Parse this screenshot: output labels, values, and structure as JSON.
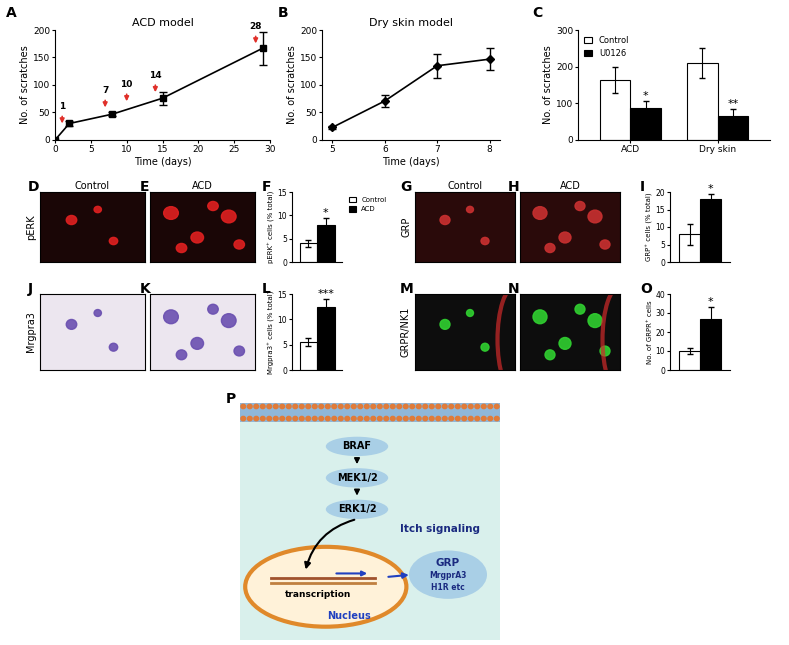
{
  "chart_data": [
    {
      "panel_label": "A",
      "type": "line",
      "title": "ACD model",
      "x_label": "Time (days)",
      "y_label": "No. of scratches",
      "x": [
        0,
        2,
        8,
        15,
        29
      ],
      "values": [
        0,
        30,
        47,
        76,
        167
      ],
      "errors": [
        0,
        4,
        4,
        12,
        30
      ],
      "color": "#000000",
      "marker": "square",
      "xlim": [
        0,
        30
      ],
      "xticks": [
        0,
        5,
        10,
        15,
        20,
        25,
        30
      ],
      "ylim": [
        0,
        200
      ],
      "yticks": [
        0,
        50,
        100,
        150,
        200
      ],
      "arrows": {
        "x": [
          1,
          7,
          10,
          14,
          28
        ],
        "color": "#e0302a"
      }
    },
    {
      "panel_label": "B",
      "type": "line",
      "title": "Dry skin model",
      "x_label": "Time (days)",
      "y_label": "No. of scratches",
      "x": [
        5,
        6,
        7,
        8
      ],
      "values": [
        23,
        71,
        135,
        147
      ],
      "errors": [
        3,
        11,
        22,
        20
      ],
      "color": "#000000",
      "marker": "diamond",
      "xlim": [
        4.8,
        8.2
      ],
      "xticks": [
        5,
        6,
        7,
        8
      ],
      "ylim": [
        0,
        200
      ],
      "yticks": [
        0,
        50,
        100,
        150,
        200
      ]
    },
    {
      "panel_label": "C",
      "type": "bar",
      "y_label": "No. of scratches",
      "categories": [
        "ACD",
        "Dry skin"
      ],
      "series": [
        {
          "name": "Control",
          "color": "#ffffff",
          "values": [
            163,
            210
          ],
          "errors": [
            35,
            40
          ]
        },
        {
          "name": "U0126",
          "color": "#000000",
          "values": [
            87,
            65
          ],
          "errors": [
            18,
            20
          ],
          "annotations": [
            "*",
            "**"
          ]
        }
      ],
      "ylim": [
        0,
        300
      ],
      "yticks": [
        0,
        100,
        200,
        300
      ],
      "legend": "upper left"
    },
    {
      "panel_label": "F",
      "type": "bar",
      "y_label": "pERK⁺ cells (% total)",
      "categories": [
        null
      ],
      "series": [
        {
          "name": "Control",
          "color": "#ffffff",
          "values": [
            4
          ],
          "errors": [
            0.7
          ]
        },
        {
          "name": "ACD",
          "color": "#000000",
          "values": [
            8
          ],
          "errors": [
            1.5
          ],
          "annotations": [
            "*"
          ]
        }
      ],
      "ylim": [
        0,
        15
      ],
      "yticks": [
        0,
        5,
        10,
        15
      ],
      "legend": "right"
    },
    {
      "panel_label": "I",
      "type": "bar",
      "y_label": "GRP⁺ cells (% total)",
      "categories": [
        null
      ],
      "series": [
        {
          "color": "#ffffff",
          "values": [
            8
          ],
          "errors": [
            3
          ]
        },
        {
          "color": "#000000",
          "values": [
            18
          ],
          "errors": [
            1.5
          ],
          "annotations": [
            "*"
          ]
        }
      ],
      "ylim": [
        0,
        20
      ],
      "yticks": [
        0,
        5,
        10,
        15,
        20
      ]
    },
    {
      "panel_label": "L",
      "type": "bar",
      "y_label": "Mrgpra3⁺ cells (% total)",
      "categories": [
        null
      ],
      "series": [
        {
          "color": "#ffffff",
          "values": [
            5.5
          ],
          "errors": [
            0.8
          ]
        },
        {
          "color": "#000000",
          "values": [
            12.5
          ],
          "errors": [
            1.5
          ],
          "annotations": [
            "***"
          ]
        }
      ],
      "ylim": [
        0,
        15
      ],
      "yticks": [
        0,
        5,
        10,
        15
      ]
    },
    {
      "panel_label": "O",
      "type": "bar",
      "y_label": "No. of GRPR⁺ cells",
      "categories": [
        null
      ],
      "series": [
        {
          "color": "#ffffff",
          "values": [
            10
          ],
          "errors": [
            1.5
          ]
        },
        {
          "color": "#000000",
          "values": [
            27
          ],
          "errors": [
            6
          ],
          "annotations": [
            "*"
          ]
        }
      ],
      "ylim": [
        0,
        40
      ],
      "yticks": [
        0,
        10,
        20,
        30,
        40
      ]
    }
  ],
  "image_panels": [
    {
      "panel_label": "D",
      "title": "Control",
      "row_label": "pERK",
      "color": "#1a0606"
    },
    {
      "panel_label": "E",
      "title": "ACD",
      "color": "#1a0606"
    },
    {
      "panel_label": "G",
      "title": "Control",
      "row_label": "GRP",
      "color": "#2a0a0a"
    },
    {
      "panel_label": "H",
      "title": "ACD",
      "color": "#2a0a0a"
    },
    {
      "panel_label": "J",
      "row_label": "Mrgpra3",
      "color": "#ece6ef"
    },
    {
      "panel_label": "K",
      "color": "#ece6ef"
    },
    {
      "panel_label": "M",
      "row_label": "GRPR/NK1",
      "color": "#0d0d0d"
    },
    {
      "panel_label": "N",
      "color": "#0d0d0d"
    }
  ],
  "diagram": {
    "panel_label": "P",
    "pathway": [
      "BRAF",
      "MEK1/2",
      "ERK1/2"
    ],
    "compartment": "Nucleus",
    "process": "transcription",
    "output": "Itch signaling",
    "targets": [
      "GRP",
      "MrgprA3",
      "H1R etc"
    ]
  }
}
